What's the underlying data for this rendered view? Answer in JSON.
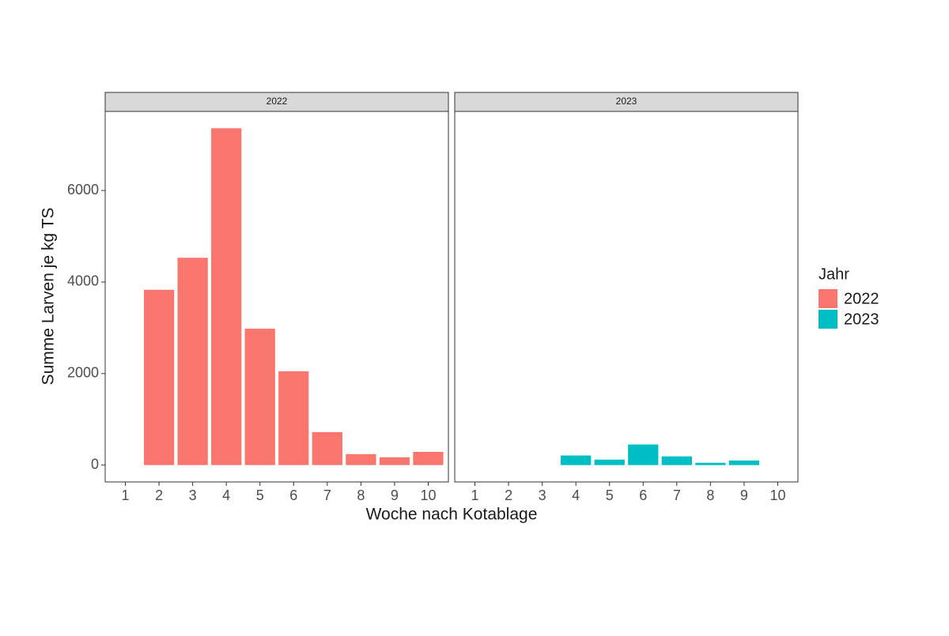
{
  "chart_data": {
    "type": "bar",
    "x_label": "Woche nach Kotablage",
    "y_label": "Summe Larven je kg TS",
    "legend_title": "Jahr",
    "legend_position": "right",
    "xlim": [
      0.4,
      10.6
    ],
    "xticks": [
      1,
      2,
      3,
      4,
      5,
      6,
      7,
      8,
      9,
      10
    ],
    "ylim": [
      -368,
      7728
    ],
    "yticks": [
      0,
      2000,
      4000,
      6000
    ],
    "series": [
      {
        "name": "2022",
        "color": "#F8766D",
        "x": [
          2,
          3,
          4,
          5,
          6,
          7,
          8,
          9,
          10
        ],
        "values": [
          3830,
          4530,
          7360,
          2980,
          2050,
          720,
          240,
          170,
          290
        ]
      },
      {
        "name": "2023",
        "color": "#00BFC4",
        "x": [
          4,
          5,
          6,
          7,
          8,
          9
        ],
        "values": [
          210,
          120,
          450,
          190,
          50,
          100
        ]
      }
    ]
  }
}
